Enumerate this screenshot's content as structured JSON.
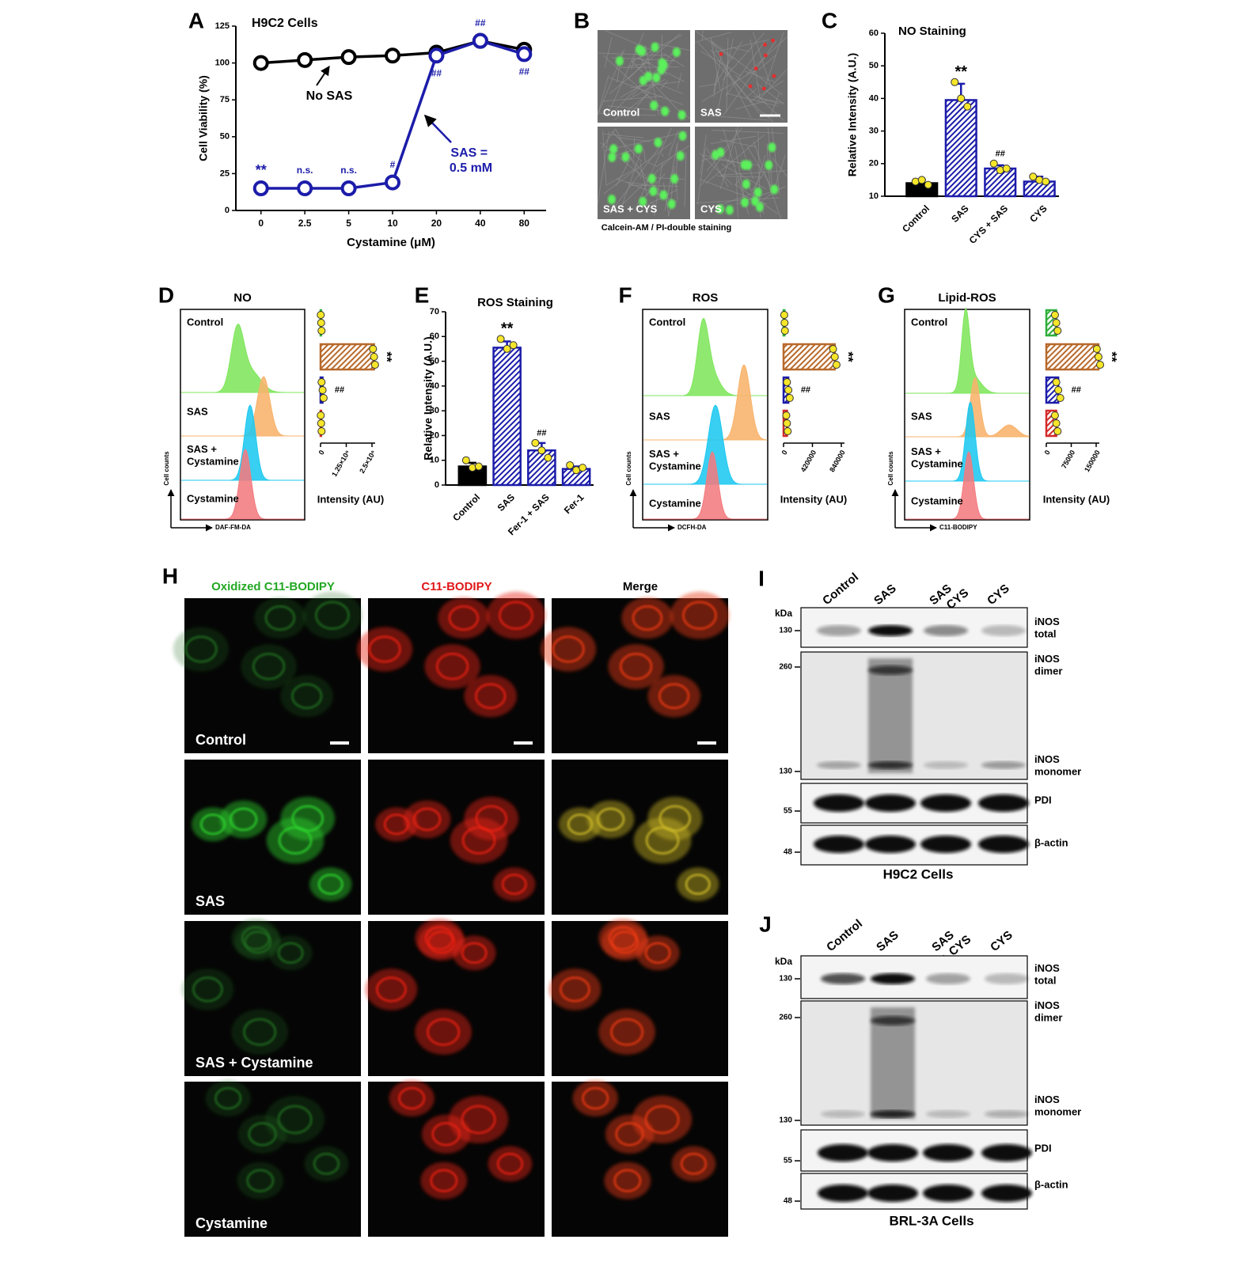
{
  "panel_letters": [
    "A",
    "B",
    "C",
    "D",
    "E",
    "F",
    "G",
    "H",
    "I",
    "J"
  ],
  "chart_data": [
    {
      "type": "line",
      "title": "H9C2 Cells",
      "xlabel": "Cystamine (μM)",
      "ylabel": "Cell Viability (%)",
      "categories": [
        "0",
        "2.5",
        "5",
        "10",
        "20",
        "40",
        "80"
      ],
      "ylim": [
        0,
        125
      ],
      "yticks": [
        0,
        25,
        50,
        75,
        100,
        125
      ],
      "series": [
        {
          "name": "No SAS",
          "color": "#000000",
          "values": [
            100,
            102,
            104,
            105,
            107,
            115,
            109
          ]
        },
        {
          "name": "SAS = 0.5 mM",
          "color": "#1c1caa",
          "values": [
            15,
            15,
            15,
            19,
            105,
            115,
            106
          ],
          "significance": [
            "**",
            "n.s.",
            "n.s.",
            "#",
            "##",
            "##",
            "##"
          ]
        }
      ]
    },
    {
      "type": "bar",
      "title": "NO Staining",
      "ylabel": "Relative Intensity (A.U.)",
      "categories": [
        "Control",
        "SAS",
        "CYS + SAS",
        "CYS"
      ],
      "values": [
        14,
        39.5,
        18.5,
        14.5
      ],
      "errors": [
        1,
        5,
        1,
        1.5
      ],
      "points": [
        [
          14.5,
          15,
          13.5
        ],
        [
          45,
          40,
          37.5
        ],
        [
          20,
          18,
          18.5
        ],
        [
          16,
          15,
          14.5
        ]
      ],
      "colors": [
        "#000000",
        "#1c1caa",
        "#1c1caa",
        "#1c1caa"
      ],
      "hatch": [
        false,
        true,
        true,
        true
      ],
      "significance": [
        null,
        "**",
        "##",
        null
      ],
      "ylim": [
        10,
        60
      ],
      "yticks": [
        10,
        20,
        30,
        40,
        50,
        60
      ]
    },
    {
      "type": "hbar",
      "title": "NO",
      "categories": [
        "Control",
        "SAS",
        "SAS + Cystamine",
        "Cystamine"
      ],
      "values": [
        30000,
        2600000,
        100000,
        30000
      ],
      "points": [
        [
          10000,
          30000,
          50000
        ],
        [
          2550000,
          2600000,
          2650000
        ],
        [
          50000,
          100000,
          150000
        ],
        [
          10000,
          30000,
          50000
        ]
      ],
      "colors": [
        "#2fae3a",
        "#b8692a",
        "#1c1caa",
        "#d42a2a"
      ],
      "significance": [
        null,
        "**",
        "##",
        null
      ],
      "xlim": [
        0,
        2500000
      ],
      "xticks": [
        0,
        {
          "value": 1250000,
          "label": "1.25×10⁶"
        },
        {
          "value": 2500000,
          "label": "2.5×10⁶"
        }
      ],
      "xlabel": "Intensity (AU)",
      "histogram_xlabel": "DAF-FM-DA",
      "histogram_ylabel": "Cell counts"
    },
    {
      "type": "bar",
      "title": "ROS Staining",
      "ylabel": "Relative Intensity (A.U.)",
      "categories": [
        "Control",
        "SAS",
        "Fer-1 + SAS",
        "Fer-1"
      ],
      "values": [
        7.5,
        55.5,
        14,
        6.5
      ],
      "errors": [
        1.5,
        2.5,
        3,
        1
      ],
      "points": [
        [
          10,
          7,
          7.5
        ],
        [
          59,
          55,
          56.5
        ],
        [
          17,
          14,
          11
        ],
        [
          8,
          6,
          7
        ]
      ],
      "colors": [
        "#000000",
        "#1c1caa",
        "#1c1caa",
        "#1c1caa"
      ],
      "hatch": [
        false,
        true,
        true,
        true
      ],
      "significance": [
        null,
        "**",
        "##",
        null
      ],
      "ylim": [
        0,
        70
      ],
      "yticks": [
        0,
        10,
        20,
        30,
        40,
        50,
        60,
        70
      ]
    },
    {
      "type": "hbar",
      "title": "ROS",
      "categories": [
        "Control",
        "SAS",
        "SAS + Cystamine",
        "Cystamine"
      ],
      "values": [
        15000,
        745000,
        70000,
        50000
      ],
      "points": [
        [
          10000,
          15000,
          20000
        ],
        [
          720000,
          745000,
          770000
        ],
        [
          50000,
          70000,
          90000
        ],
        [
          40000,
          50000,
          60000
        ]
      ],
      "colors": [
        "#2fae3a",
        "#b8692a",
        "#1c1caa",
        "#d42a2a"
      ],
      "significance": [
        null,
        "**",
        "##",
        null
      ],
      "xlim": [
        0,
        840000
      ],
      "xticks": [
        0,
        420000,
        840000
      ],
      "xlabel": "Intensity (AU)",
      "histogram_xlabel": "DCFH-DA",
      "histogram_ylabel": "Cell counts"
    },
    {
      "type": "hbar",
      "title": "Lipid-ROS",
      "categories": [
        "Control",
        "SAS",
        "SAS + Cystamine",
        "Cystamine"
      ],
      "values": [
        30000,
        157000,
        36000,
        30000
      ],
      "points": [
        [
          26000,
          30000,
          34000
        ],
        [
          152000,
          157000,
          162000
        ],
        [
          30000,
          36000,
          42000
        ],
        [
          26000,
          30000,
          34000
        ]
      ],
      "colors": [
        "#2fae3a",
        "#b8692a",
        "#1c1caa",
        "#d42a2a"
      ],
      "significance": [
        null,
        "**",
        "##",
        null
      ],
      "xlim": [
        0,
        150000
      ],
      "xticks": [
        0,
        75000,
        150000
      ],
      "xlabel": "Intensity (AU)",
      "histogram_xlabel": "C11-BODIPY",
      "histogram_ylabel": "Cell counts"
    }
  ],
  "panel_b": {
    "labels": [
      "Control",
      "SAS",
      "SAS + CYS",
      "CYS"
    ],
    "caption": "Calcein-AM / PI-double staining"
  },
  "panel_h": {
    "columns": [
      "Oxidized C11-BODIPY",
      "C11-BODIPY",
      "Merge"
    ],
    "rows": [
      "Control",
      "SAS",
      "SAS + Cystamine",
      "Cystamine"
    ]
  },
  "blots": [
    {
      "lanes": [
        "Control",
        "SAS",
        "SAS + CYS",
        "CYS"
      ],
      "unit": "kDa",
      "markers": [
        130,
        260,
        130,
        55,
        48
      ],
      "labels": [
        "iNOS total",
        "iNOS dimer",
        "iNOS monomer",
        "PDI",
        "β-actin"
      ],
      "caption": "H9C2 Cells"
    },
    {
      "lanes": [
        "Control",
        "SAS",
        "SAS + CYS",
        "CYS"
      ],
      "unit": "kDa",
      "markers": [
        130,
        260,
        130,
        55,
        48
      ],
      "labels": [
        "iNOS total",
        "iNOS dimer",
        "iNOS monomer",
        "PDI",
        "β-actin"
      ],
      "caption": "BRL-3A Cells"
    }
  ]
}
